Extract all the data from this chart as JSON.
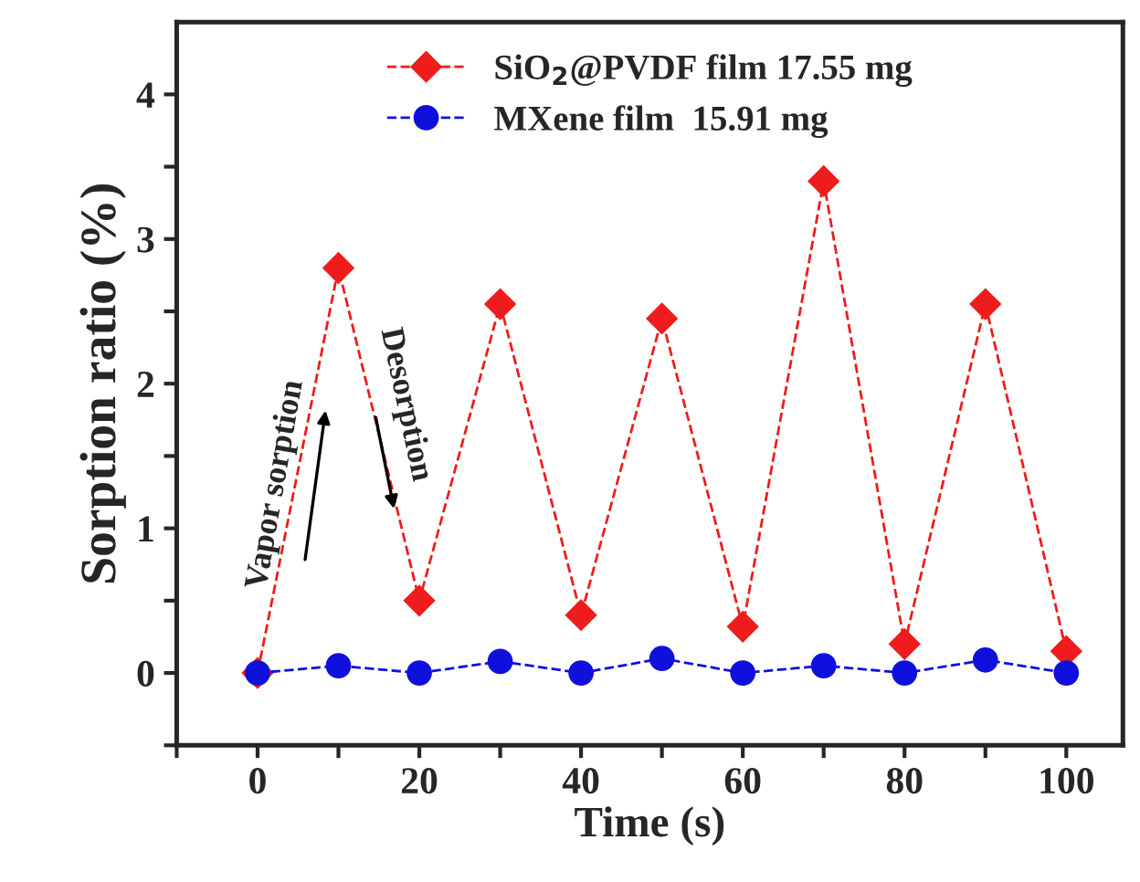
{
  "chart_data": {
    "type": "line",
    "xlabel": "Time (s)",
    "ylabel": "Sorption ratio (%)",
    "x": [
      0,
      10,
      20,
      30,
      40,
      50,
      60,
      70,
      80,
      90,
      100
    ],
    "series": [
      {
        "name": "SiO$_{2}$@PVDF film 17.55 mg",
        "color": "#ee1c1c",
        "marker": "diamond",
        "values": [
          0,
          2.8,
          0.5,
          2.55,
          0.4,
          2.45,
          0.32,
          3.4,
          0.2,
          2.55,
          0.15
        ]
      },
      {
        "name": "MXene film  15.91 mg",
        "color": "#1010dd",
        "marker": "circle",
        "values": [
          0,
          0.05,
          0,
          0.08,
          0,
          0.1,
          0,
          0.05,
          0,
          0.09,
          0
        ]
      }
    ],
    "line_style": "dashed",
    "xlim": [
      -10,
      107
    ],
    "ylim": [
      -0.5,
      4.5
    ],
    "xticks": [
      {
        "value": -10,
        "label": null
      },
      0,
      {
        "value": 10,
        "label": null
      },
      20,
      {
        "value": 30,
        "label": null
      },
      40,
      {
        "value": 50,
        "label": null
      },
      60,
      {
        "value": 70,
        "label": null
      },
      80,
      {
        "value": 90,
        "label": null
      },
      100
    ],
    "yticks": [
      {
        "value": -0.5,
        "label": null
      },
      0,
      {
        "value": 0.5,
        "label": null
      },
      1,
      {
        "value": 1.5,
        "label": null
      },
      2,
      {
        "value": 2.5,
        "label": null
      },
      3,
      {
        "value": 3.5,
        "label": null
      },
      4
    ],
    "annotations": [
      "Vapor sorption",
      {
        "text": "Desorption",
        "x": 17,
        "y": 1.1
      }
    ],
    "legend": "top",
    "grid": false
  }
}
